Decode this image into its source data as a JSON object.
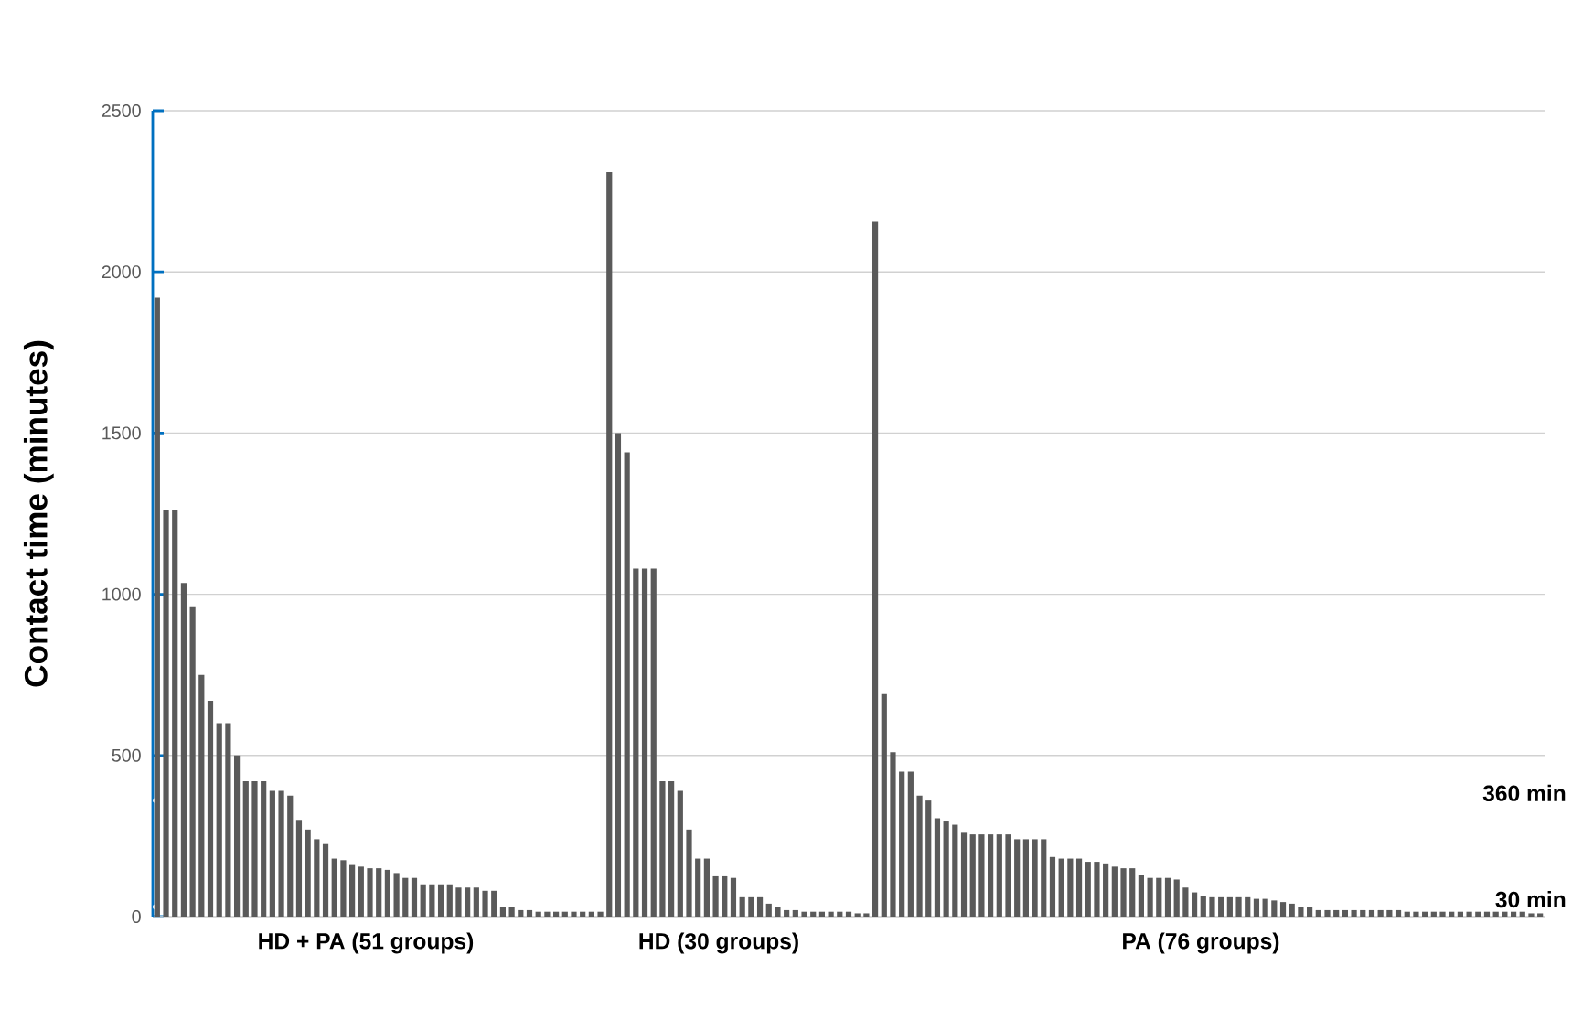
{
  "chart_data": {
    "type": "bar",
    "ylabel": "Contact time (minutes)",
    "categories": [
      null,
      null,
      null,
      null,
      null,
      null,
      null,
      null,
      null,
      null,
      null,
      null,
      null,
      null,
      null,
      null,
      null,
      null,
      null,
      null,
      null,
      null,
      null,
      null,
      null,
      null,
      null,
      null,
      null,
      null,
      null,
      null,
      null,
      null,
      null,
      null,
      null,
      null,
      null,
      null,
      null,
      null,
      null,
      null,
      null,
      null,
      null,
      null,
      null,
      null,
      null,
      null,
      null,
      null,
      null,
      null,
      null,
      null,
      null,
      null,
      null,
      null,
      null,
      null,
      null,
      null,
      null,
      null,
      null,
      null,
      null,
      null,
      null,
      null,
      null,
      null,
      null,
      null,
      null,
      null,
      null,
      null,
      null,
      null,
      null,
      null,
      null,
      null,
      null,
      null,
      null,
      null,
      null,
      null,
      null,
      null,
      null,
      null,
      null,
      null,
      null,
      null,
      null,
      null,
      null,
      null,
      null,
      null,
      null,
      null,
      null,
      null,
      null,
      null,
      null,
      null,
      null,
      null,
      null,
      null,
      null,
      null,
      null,
      null,
      null,
      null,
      null,
      null,
      null,
      null,
      null,
      null,
      null,
      null,
      null,
      null,
      null,
      null,
      null,
      null,
      null,
      null,
      null,
      null,
      null,
      null,
      null,
      null,
      null,
      null,
      null,
      null,
      null,
      null,
      null,
      null,
      null
    ],
    "values": [
      1920,
      1260,
      1260,
      1035,
      960,
      750,
      670,
      600,
      600,
      500,
      420,
      420,
      420,
      390,
      390,
      375,
      300,
      270,
      240,
      225,
      180,
      175,
      160,
      155,
      150,
      150,
      145,
      135,
      120,
      120,
      100,
      100,
      100,
      100,
      90,
      90,
      90,
      80,
      80,
      30,
      30,
      20,
      20,
      15,
      15,
      15,
      15,
      15,
      15,
      15,
      15,
      2310,
      1500,
      1440,
      1080,
      1080,
      1080,
      420,
      420,
      390,
      270,
      180,
      180,
      125,
      125,
      120,
      60,
      60,
      60,
      40,
      30,
      20,
      20,
      15,
      15,
      15,
      15,
      15,
      15,
      10,
      10,
      2155,
      690,
      510,
      450,
      450,
      375,
      360,
      305,
      295,
      285,
      260,
      255,
      255,
      255,
      255,
      255,
      240,
      240,
      240,
      240,
      185,
      180,
      180,
      180,
      170,
      170,
      165,
      155,
      150,
      150,
      130,
      120,
      120,
      120,
      115,
      90,
      75,
      65,
      60,
      60,
      60,
      60,
      60,
      55,
      55,
      50,
      45,
      40,
      30,
      30,
      20,
      20,
      20,
      20,
      20,
      20,
      20,
      20,
      20,
      20,
      15,
      15,
      15,
      15,
      15,
      15,
      15,
      15,
      15,
      15,
      15,
      15,
      15,
      15,
      10,
      10
    ],
    "color": "#5a5a5a",
    "ylim": [
      0,
      2500
    ],
    "yticks": [
      0,
      500,
      1000,
      1500,
      2000,
      2500
    ],
    "grid": "y",
    "ref_lines": [
      {
        "axis": "y",
        "value": 360,
        "label": "360 min",
        "color": "#ffffff"
      },
      {
        "axis": "y",
        "value": 30,
        "label": "30 min",
        "color": "#ffffff"
      }
    ],
    "annotations": [
      "HD + PA (51 groups)",
      "HD (30 groups)",
      "PA (76 groups)"
    ]
  }
}
